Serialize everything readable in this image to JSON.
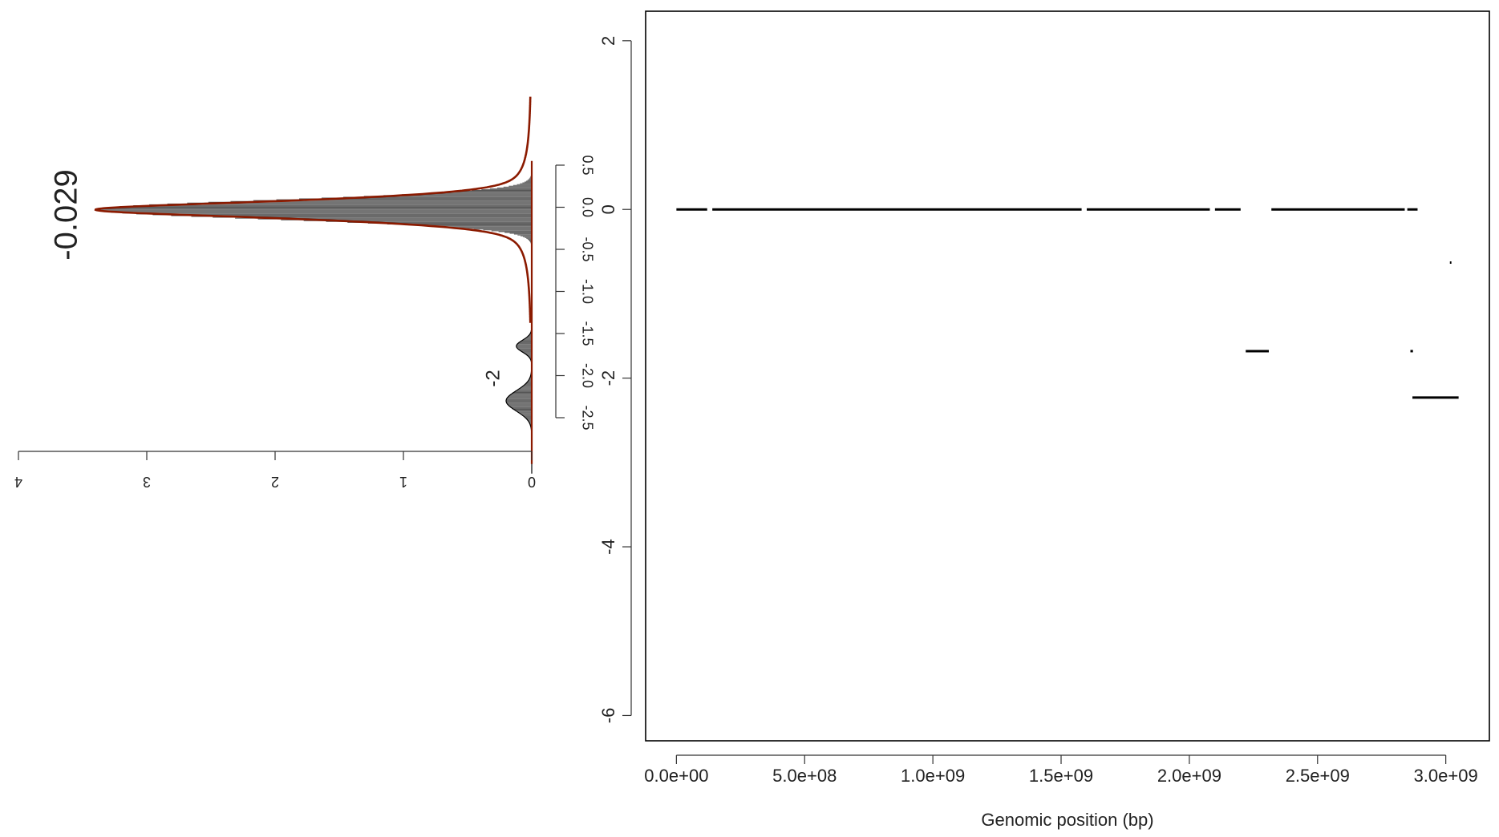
{
  "chart_data": [
    {
      "type": "histogram",
      "orientation": "rotated",
      "peak_labels": [
        "-0.029",
        "-2"
      ],
      "density_axis": {
        "range": [
          0,
          4
        ],
        "ticks": [
          "0",
          "1",
          "2",
          "3",
          "4"
        ]
      },
      "value_axis": {
        "range": [
          -2.8,
          0.55
        ],
        "ticks": [
          "0.5",
          "0.0",
          "-0.5",
          "-1.0",
          "-1.5",
          "-2.0",
          "-2.5"
        ]
      },
      "components": [
        {
          "mean": -0.029,
          "sd": 0.115,
          "peak_density": 3.4,
          "color": "#8b1a00"
        },
        {
          "mean": -1.65,
          "sd": 0.07,
          "peak_density": 0.12,
          "color": "#000000"
        },
        {
          "mean": -2.3,
          "sd": 0.12,
          "peak_density": 0.2,
          "color": "#000000"
        }
      ],
      "bars_color": "#555555"
    },
    {
      "type": "line",
      "xlabel": "Genomic position (bp)",
      "ylabel": "",
      "x_ticks": [
        "0.0e+00",
        "5.0e+08",
        "1.0e+09",
        "1.5e+09",
        "2.0e+09",
        "2.5e+09",
        "3.0e+09"
      ],
      "y_ticks": [
        "2",
        "0",
        "-2",
        "-4",
        "-6"
      ],
      "xlim": [
        -120000000.0,
        3170000000.0
      ],
      "ylim": [
        -6.3,
        2.35
      ],
      "segments": [
        {
          "x0": 0.0,
          "x1": 120000000.0,
          "y": 0
        },
        {
          "x0": 140000000.0,
          "x1": 1580000000.0,
          "y": 0
        },
        {
          "x0": 1600000000.0,
          "x1": 2080000000.0,
          "y": 0
        },
        {
          "x0": 2100000000.0,
          "x1": 2200000000.0,
          "y": 0
        },
        {
          "x0": 2320000000.0,
          "x1": 2840000000.0,
          "y": 0
        },
        {
          "x0": 2850000000.0,
          "x1": 2890000000.0,
          "y": 0
        },
        {
          "x0": 2220000000.0,
          "x1": 2310000000.0,
          "y": -1.68
        },
        {
          "x0": 2862000000.0,
          "x1": 2872000000.0,
          "y": -1.68
        },
        {
          "x0": 2870000000.0,
          "x1": 3050000000.0,
          "y": -2.23
        },
        {
          "x0": 3016000000.0,
          "x1": 3022000000.0,
          "y": -0.63
        }
      ],
      "line_color": "#000000"
    }
  ]
}
